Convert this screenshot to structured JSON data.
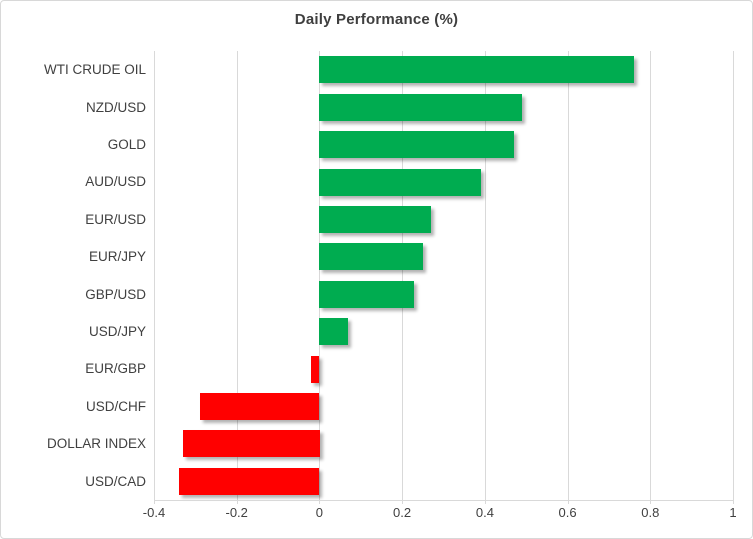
{
  "chart_data": {
    "type": "bar",
    "orientation": "horizontal",
    "title": "Daily Performance (%)",
    "categories": [
      "WTI CRUDE OIL",
      "NZD/USD",
      "GOLD",
      "AUD/USD",
      "EUR/USD",
      "EUR/JPY",
      "GBP/USD",
      "USD/JPY",
      "EUR/GBP",
      "USD/CHF",
      "DOLLAR INDEX",
      "USD/CAD"
    ],
    "values": [
      0.76,
      0.49,
      0.47,
      0.39,
      0.27,
      0.25,
      0.23,
      0.07,
      -0.02,
      -0.29,
      -0.33,
      -0.34
    ],
    "xlim": [
      -0.4,
      1.0
    ],
    "x_ticks": [
      -0.4,
      -0.2,
      0,
      0.2,
      0.4,
      0.6,
      0.8,
      1
    ],
    "x_tick_labels": [
      "-0.4",
      "-0.2",
      "0",
      "0.2",
      "0.4",
      "0.6",
      "0.8",
      "1"
    ],
    "grid": true,
    "legend": "none",
    "positive_color": "#00AC50",
    "negative_color": "#FF0000",
    "gridline_color": "#D9D9D9",
    "label_color": "#404040",
    "title_color": "#3F3F3F",
    "background_color": "#FFFFFF"
  }
}
